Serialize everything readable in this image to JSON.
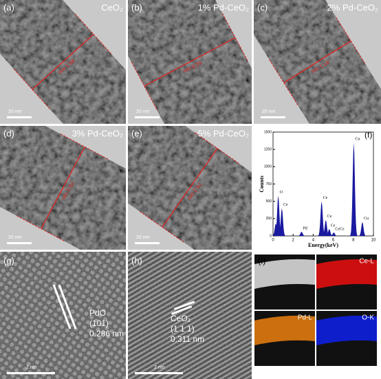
{
  "panels": [
    {
      "label": "(a)",
      "title": "CeO₂",
      "measure": "49.1 nm",
      "scale": "20 nm"
    },
    {
      "label": "(b)",
      "title": "1% Pd-CeO₂",
      "measure": "62.6 nm",
      "scale": "20 nm"
    },
    {
      "label": "(c)",
      "title": "2% Pd-CeO₂",
      "measure": "47.1 nm",
      "scale": "20 nm"
    },
    {
      "label": "(d)",
      "title": "3% Pd-CeO₂",
      "measure": "70.1 nm",
      "scale": "20 nm"
    },
    {
      "label": "(e)",
      "title": "5% Pd-CeO₂",
      "measure": "75.2 nm",
      "scale": "20 nm"
    }
  ],
  "eds": {
    "label": "(f)",
    "xlabel": "Energy(keV)",
    "ylabel": "Counts",
    "xlim": [
      0,
      10
    ],
    "xticks": [
      0,
      2,
      4,
      6,
      8,
      10
    ],
    "ylim": [
      0,
      1500
    ],
    "yticks": [
      0,
      250,
      500,
      750,
      1000,
      1250,
      1500
    ],
    "peaks": [
      {
        "label": "C",
        "x": 0.28,
        "y": 180
      },
      {
        "label": "O",
        "x": 0.52,
        "y": 580
      },
      {
        "label": "Ce",
        "x": 0.88,
        "y": 400
      },
      {
        "label": "Pd",
        "x": 2.84,
        "y": 60
      },
      {
        "label": "Ce",
        "x": 4.84,
        "y": 500
      },
      {
        "label": "Ce",
        "x": 5.26,
        "y": 230
      },
      {
        "label": "Ce",
        "x": 5.6,
        "y": 100
      },
      {
        "label": "CeCe",
        "x": 6.05,
        "y": 50
      },
      {
        "label": "Cu",
        "x": 8.04,
        "y": 1350
      },
      {
        "label": "Cu",
        "x": 8.9,
        "y": 200
      }
    ]
  },
  "hrtem": [
    {
      "label": "(g)",
      "lines": [
        "PdO",
        "(101)",
        "0.286 nm"
      ],
      "scale": "2 nm"
    },
    {
      "label": "(h)",
      "lines": [
        "CeO₂",
        "(1 1 1)",
        "0.311 nm"
      ],
      "scale": "2 nm"
    }
  ],
  "mapping": {
    "label": "(i)",
    "maps": [
      "Ce-L",
      "Pd-L",
      "O-K"
    ]
  }
}
